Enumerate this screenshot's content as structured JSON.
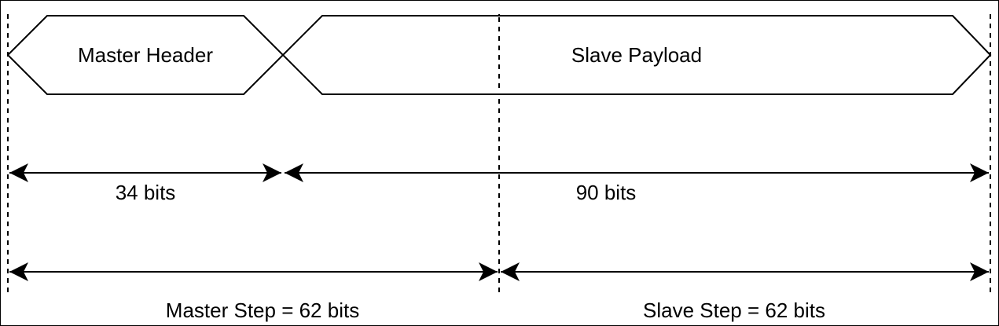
{
  "diagram": {
    "colors": {
      "stroke": "#000000",
      "background": "#ffffff"
    },
    "segments": {
      "master_header": {
        "label": "Master Header"
      },
      "slave_payload": {
        "label": "Slave Payload"
      }
    },
    "measurements": {
      "master_header_bits": "34 bits",
      "slave_payload_bits": "90 bits",
      "master_step": "Master Step = 62 bits",
      "slave_step": "Slave Step = 62 bits"
    }
  }
}
